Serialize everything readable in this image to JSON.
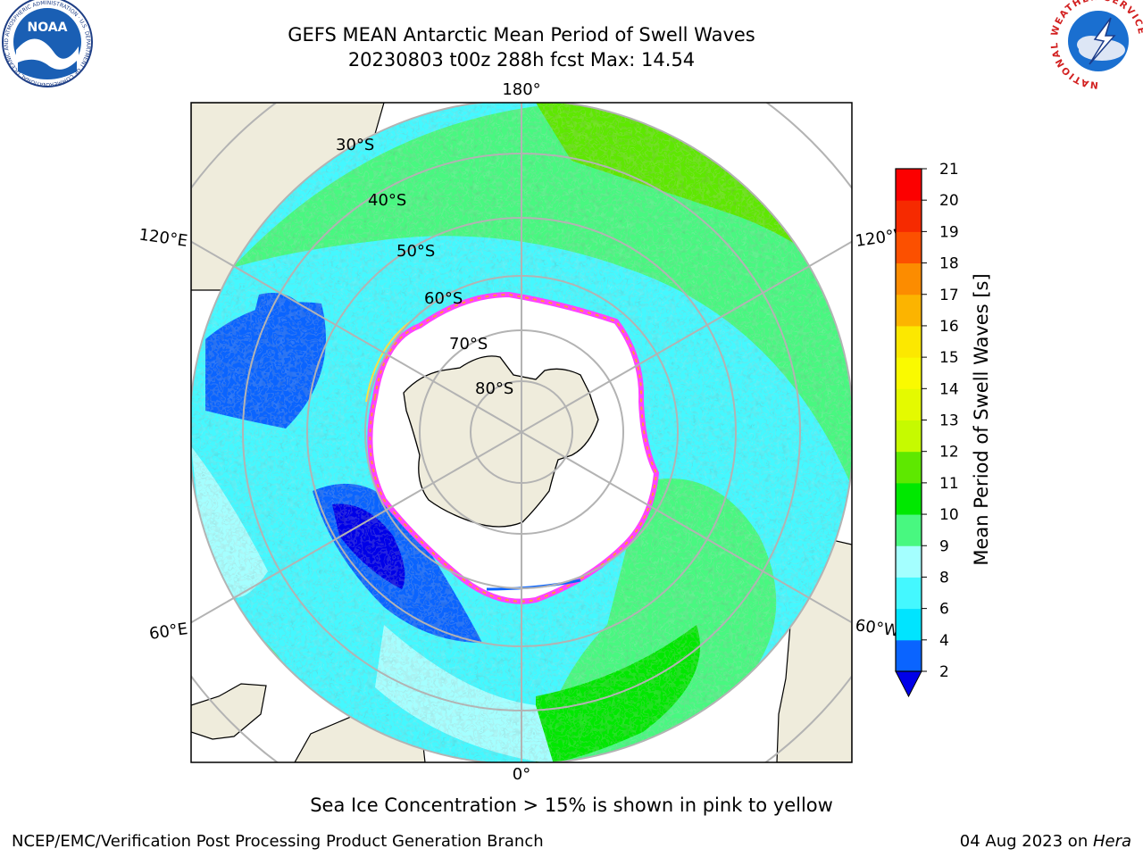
{
  "header": {
    "title_line1": "GEFS MEAN Antarctic Mean Period of Swell Waves",
    "title_line2": "20230803 t00z 288h fcst   Max: 14.54"
  },
  "logos": {
    "noaa_label": "NOAA",
    "noaa_ring_text": "NATIONAL OCEANIC AND ATMOSPHERIC ADMINISTRATION · U.S. DEPARTMENT OF COMMERCE",
    "nws_ring_text": "NATIONAL WEATHER SERVICE"
  },
  "map": {
    "projection": "south-polar-stereographic",
    "lon_labels": [
      "180°",
      "120°E",
      "120°W",
      "60°E",
      "60°W",
      "0°"
    ],
    "lat_labels": [
      "30°S",
      "40°S",
      "50°S",
      "60°S",
      "70°S",
      "80°S"
    ],
    "land_color": "#efecdc",
    "ocean_nodata_color": "#ffffff",
    "sea_ice_colors": [
      "#ff44ff",
      "#ff9933",
      "#ffdd44"
    ]
  },
  "colorbar": {
    "label": "Mean Period of Swell Waves [s]",
    "ticks": [
      "2",
      "4",
      "6",
      "8",
      "9",
      "10",
      "11",
      "12",
      "13",
      "14",
      "15",
      "16",
      "17",
      "18",
      "19",
      "20",
      "21"
    ],
    "colors": [
      "#0a64ff",
      "#00e4ff",
      "#44f8ff",
      "#a4ffff",
      "#48f880",
      "#00e800",
      "#5ee800",
      "#c6fa00",
      "#e4fa00",
      "#fafa00",
      "#fce800",
      "#fcb400",
      "#fc8c00",
      "#fc5000",
      "#f62a00",
      "#fc0000"
    ],
    "extend_color": "#0000e8"
  },
  "footer": {
    "note": "Sea Ice Concentration > 15% is shown in pink to yellow",
    "credit": "NCEP/EMC/Verification Post Processing Product Generation Branch",
    "date_text": "04 Aug 2023 on ",
    "date_machine": "Hera"
  }
}
